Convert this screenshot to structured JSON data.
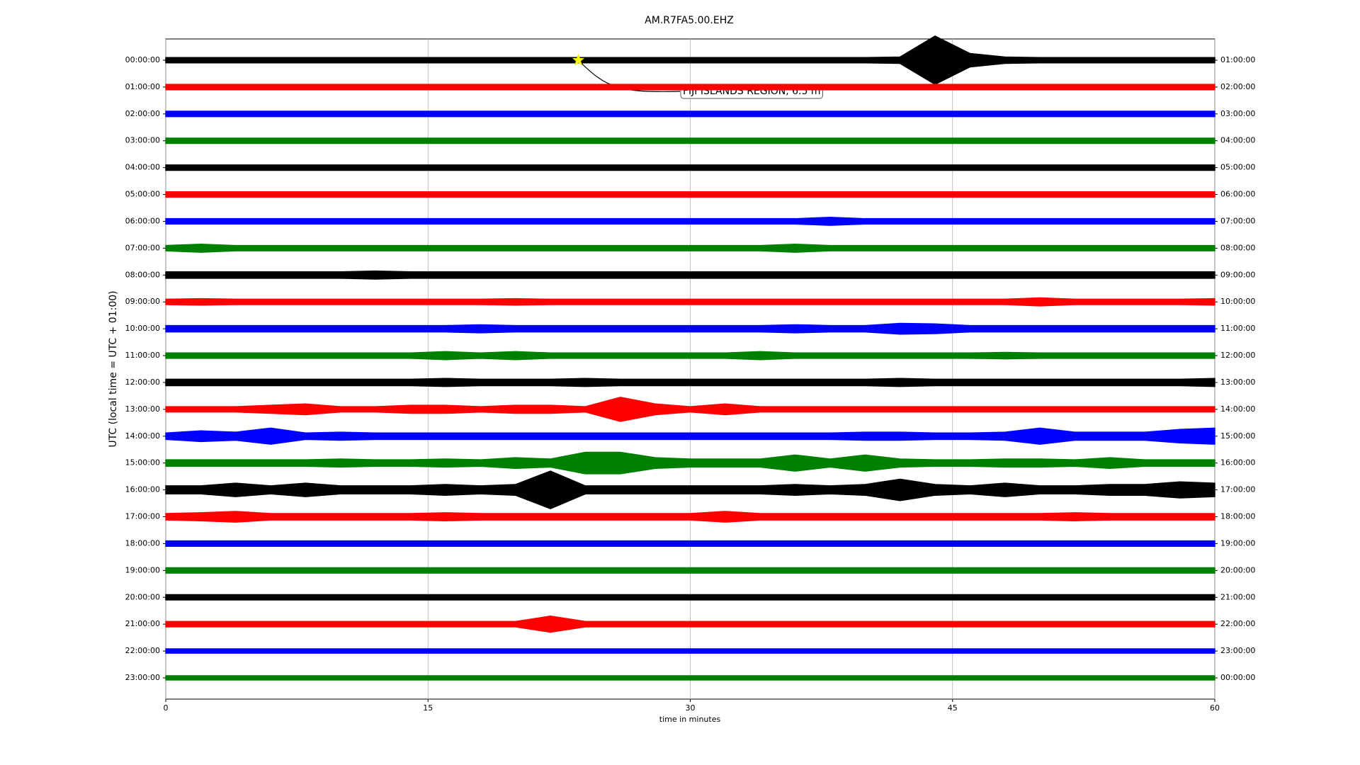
{
  "chart_data": {
    "type": "helicorder",
    "title": "AM.R7FA5.00.EHZ",
    "xlabel": "time in minutes",
    "ylabel": "UTC (local time = UTC + 01:00)",
    "xlim": [
      0,
      60
    ],
    "xticks": [
      0,
      15,
      30,
      45,
      60
    ],
    "grid": true,
    "x": [
      0,
      2,
      4,
      6,
      8,
      10,
      12,
      14,
      16,
      18,
      20,
      22,
      24,
      26,
      28,
      30,
      32,
      34,
      36,
      38,
      40,
      42,
      44,
      46,
      48,
      50,
      52,
      54,
      56,
      58,
      60
    ],
    "series": [
      {
        "name": "00:00:00",
        "right_label": "01:00:00",
        "color": "#000000",
        "annotation": {
          "text": "FIJI ISLANDS REGION, 6.5 m",
          "x": 23.6
        },
        "values": [
          0.1,
          0.1,
          0.1,
          0.1,
          0.1,
          0.1,
          0.1,
          0.1,
          0.1,
          0.1,
          0.1,
          0.1,
          0.1,
          0.1,
          0.1,
          0.1,
          0.1,
          0.1,
          0.1,
          0.1,
          0.1,
          0.12,
          0.9,
          0.25,
          0.12,
          0.1,
          0.1,
          0.1,
          0.1,
          0.1,
          0.1
        ]
      },
      {
        "name": "01:00:00",
        "right_label": "02:00:00",
        "color": "#ff0000",
        "values": [
          0.1,
          0.1,
          0.1,
          0.1,
          0.1,
          0.1,
          0.1,
          0.1,
          0.1,
          0.1,
          0.1,
          0.1,
          0.1,
          0.1,
          0.1,
          0.1,
          0.1,
          0.1,
          0.1,
          0.1,
          0.1,
          0.1,
          0.1,
          0.1,
          0.1,
          0.1,
          0.1,
          0.1,
          0.1,
          0.1,
          0.1
        ]
      },
      {
        "name": "02:00:00",
        "right_label": "03:00:00",
        "color": "#0000ff",
        "values": [
          0.1,
          0.1,
          0.1,
          0.1,
          0.1,
          0.1,
          0.1,
          0.1,
          0.1,
          0.1,
          0.1,
          0.1,
          0.1,
          0.1,
          0.1,
          0.1,
          0.1,
          0.1,
          0.1,
          0.1,
          0.1,
          0.1,
          0.1,
          0.1,
          0.1,
          0.1,
          0.1,
          0.1,
          0.1,
          0.1,
          0.1
        ]
      },
      {
        "name": "03:00:00",
        "right_label": "04:00:00",
        "color": "#008000",
        "values": [
          0.1,
          0.1,
          0.1,
          0.1,
          0.1,
          0.1,
          0.1,
          0.1,
          0.1,
          0.1,
          0.1,
          0.1,
          0.1,
          0.1,
          0.1,
          0.1,
          0.1,
          0.1,
          0.1,
          0.1,
          0.1,
          0.1,
          0.1,
          0.1,
          0.1,
          0.1,
          0.1,
          0.1,
          0.1,
          0.1,
          0.1
        ]
      },
      {
        "name": "04:00:00",
        "right_label": "05:00:00",
        "color": "#000000",
        "values": [
          0.1,
          0.1,
          0.1,
          0.1,
          0.1,
          0.1,
          0.1,
          0.1,
          0.1,
          0.1,
          0.1,
          0.1,
          0.1,
          0.1,
          0.1,
          0.1,
          0.1,
          0.1,
          0.1,
          0.1,
          0.1,
          0.1,
          0.1,
          0.1,
          0.1,
          0.1,
          0.1,
          0.1,
          0.1,
          0.1,
          0.1
        ]
      },
      {
        "name": "05:00:00",
        "right_label": "06:00:00",
        "color": "#ff0000",
        "values": [
          0.1,
          0.1,
          0.1,
          0.1,
          0.1,
          0.1,
          0.1,
          0.1,
          0.1,
          0.1,
          0.1,
          0.1,
          0.1,
          0.1,
          0.1,
          0.1,
          0.1,
          0.1,
          0.1,
          0.1,
          0.1,
          0.1,
          0.1,
          0.1,
          0.1,
          0.1,
          0.1,
          0.1,
          0.1,
          0.1,
          0.1
        ]
      },
      {
        "name": "06:00:00",
        "right_label": "07:00:00",
        "color": "#0000ff",
        "values": [
          0.1,
          0.1,
          0.1,
          0.1,
          0.1,
          0.1,
          0.1,
          0.1,
          0.1,
          0.1,
          0.1,
          0.1,
          0.1,
          0.1,
          0.1,
          0.1,
          0.1,
          0.1,
          0.1,
          0.15,
          0.1,
          0.1,
          0.1,
          0.1,
          0.1,
          0.1,
          0.1,
          0.1,
          0.1,
          0.1,
          0.1
        ]
      },
      {
        "name": "07:00:00",
        "right_label": "08:00:00",
        "color": "#008000",
        "values": [
          0.1,
          0.15,
          0.1,
          0.1,
          0.1,
          0.1,
          0.1,
          0.1,
          0.1,
          0.1,
          0.1,
          0.1,
          0.1,
          0.1,
          0.1,
          0.1,
          0.1,
          0.1,
          0.15,
          0.1,
          0.1,
          0.1,
          0.1,
          0.1,
          0.1,
          0.1,
          0.1,
          0.1,
          0.1,
          0.1,
          0.1
        ]
      },
      {
        "name": "08:00:00",
        "right_label": "09:00:00",
        "color": "#000000",
        "values": [
          0.12,
          0.12,
          0.12,
          0.12,
          0.12,
          0.12,
          0.15,
          0.12,
          0.12,
          0.12,
          0.12,
          0.12,
          0.12,
          0.12,
          0.12,
          0.12,
          0.12,
          0.12,
          0.12,
          0.12,
          0.12,
          0.12,
          0.12,
          0.12,
          0.12,
          0.12,
          0.12,
          0.12,
          0.12,
          0.12,
          0.12
        ]
      },
      {
        "name": "09:00:00",
        "right_label": "10:00:00",
        "color": "#ff0000",
        "values": [
          0.1,
          0.12,
          0.1,
          0.1,
          0.1,
          0.1,
          0.1,
          0.1,
          0.1,
          0.1,
          0.12,
          0.1,
          0.1,
          0.1,
          0.1,
          0.1,
          0.1,
          0.1,
          0.1,
          0.1,
          0.1,
          0.1,
          0.1,
          0.1,
          0.1,
          0.15,
          0.1,
          0.1,
          0.1,
          0.1,
          0.12
        ]
      },
      {
        "name": "10:00:00",
        "right_label": "11:00:00",
        "color": "#0000ff",
        "values": [
          0.12,
          0.12,
          0.12,
          0.12,
          0.12,
          0.12,
          0.12,
          0.12,
          0.12,
          0.15,
          0.12,
          0.12,
          0.12,
          0.12,
          0.12,
          0.12,
          0.12,
          0.12,
          0.15,
          0.12,
          0.12,
          0.2,
          0.18,
          0.12,
          0.12,
          0.12,
          0.12,
          0.12,
          0.12,
          0.12,
          0.12
        ]
      },
      {
        "name": "11:00:00",
        "right_label": "12:00:00",
        "color": "#008000",
        "values": [
          0.1,
          0.1,
          0.1,
          0.1,
          0.1,
          0.1,
          0.1,
          0.1,
          0.15,
          0.1,
          0.15,
          0.1,
          0.1,
          0.1,
          0.1,
          0.1,
          0.1,
          0.15,
          0.1,
          0.1,
          0.1,
          0.1,
          0.1,
          0.1,
          0.12,
          0.1,
          0.1,
          0.1,
          0.1,
          0.1,
          0.1
        ]
      },
      {
        "name": "12:00:00",
        "right_label": "13:00:00",
        "color": "#000000",
        "values": [
          0.12,
          0.12,
          0.12,
          0.12,
          0.12,
          0.12,
          0.12,
          0.12,
          0.15,
          0.12,
          0.12,
          0.12,
          0.15,
          0.12,
          0.12,
          0.12,
          0.12,
          0.12,
          0.12,
          0.12,
          0.12,
          0.15,
          0.12,
          0.12,
          0.12,
          0.12,
          0.12,
          0.12,
          0.12,
          0.12,
          0.15
        ]
      },
      {
        "name": "13:00:00",
        "right_label": "14:00:00",
        "color": "#ff0000",
        "values": [
          0.1,
          0.1,
          0.1,
          0.15,
          0.2,
          0.1,
          0.1,
          0.15,
          0.15,
          0.1,
          0.15,
          0.15,
          0.1,
          0.45,
          0.2,
          0.1,
          0.2,
          0.1,
          0.1,
          0.1,
          0.1,
          0.1,
          0.1,
          0.1,
          0.1,
          0.1,
          0.1,
          0.1,
          0.1,
          0.1,
          0.1
        ]
      },
      {
        "name": "14:00:00",
        "right_label": "15:00:00",
        "color": "#0000ff",
        "values": [
          0.12,
          0.2,
          0.15,
          0.3,
          0.12,
          0.15,
          0.12,
          0.12,
          0.12,
          0.12,
          0.12,
          0.12,
          0.12,
          0.12,
          0.12,
          0.12,
          0.12,
          0.12,
          0.12,
          0.12,
          0.15,
          0.15,
          0.12,
          0.12,
          0.15,
          0.3,
          0.15,
          0.15,
          0.15,
          0.25,
          0.3
        ]
      },
      {
        "name": "15:00:00",
        "right_label": "16:00:00",
        "color": "#008000",
        "values": [
          0.12,
          0.12,
          0.12,
          0.12,
          0.12,
          0.15,
          0.12,
          0.12,
          0.15,
          0.12,
          0.2,
          0.15,
          0.4,
          0.4,
          0.2,
          0.15,
          0.15,
          0.15,
          0.3,
          0.15,
          0.3,
          0.15,
          0.12,
          0.12,
          0.15,
          0.15,
          0.12,
          0.2,
          0.12,
          0.12,
          0.12
        ]
      },
      {
        "name": "16:00:00",
        "right_label": "17:00:00",
        "color": "#000000",
        "values": [
          0.15,
          0.15,
          0.25,
          0.15,
          0.25,
          0.15,
          0.15,
          0.15,
          0.2,
          0.15,
          0.2,
          0.7,
          0.15,
          0.15,
          0.15,
          0.15,
          0.15,
          0.15,
          0.2,
          0.15,
          0.2,
          0.4,
          0.2,
          0.15,
          0.25,
          0.15,
          0.15,
          0.2,
          0.2,
          0.3,
          0.25
        ]
      },
      {
        "name": "17:00:00",
        "right_label": "18:00:00",
        "color": "#ff0000",
        "values": [
          0.12,
          0.15,
          0.2,
          0.12,
          0.12,
          0.12,
          0.12,
          0.12,
          0.15,
          0.12,
          0.12,
          0.12,
          0.12,
          0.12,
          0.12,
          0.12,
          0.2,
          0.12,
          0.12,
          0.12,
          0.12,
          0.12,
          0.12,
          0.12,
          0.12,
          0.12,
          0.15,
          0.12,
          0.12,
          0.12,
          0.12
        ]
      },
      {
        "name": "18:00:00",
        "right_label": "19:00:00",
        "color": "#0000ff",
        "values": [
          0.1,
          0.1,
          0.1,
          0.1,
          0.1,
          0.1,
          0.1,
          0.1,
          0.1,
          0.1,
          0.1,
          0.1,
          0.1,
          0.1,
          0.1,
          0.1,
          0.1,
          0.1,
          0.1,
          0.1,
          0.1,
          0.1,
          0.1,
          0.1,
          0.1,
          0.1,
          0.1,
          0.1,
          0.1,
          0.1,
          0.1
        ]
      },
      {
        "name": "19:00:00",
        "right_label": "20:00:00",
        "color": "#008000",
        "values": [
          0.1,
          0.1,
          0.1,
          0.1,
          0.1,
          0.1,
          0.1,
          0.1,
          0.1,
          0.1,
          0.1,
          0.1,
          0.1,
          0.1,
          0.1,
          0.1,
          0.1,
          0.1,
          0.1,
          0.1,
          0.1,
          0.1,
          0.1,
          0.1,
          0.1,
          0.1,
          0.1,
          0.1,
          0.1,
          0.1,
          0.1
        ]
      },
      {
        "name": "20:00:00",
        "right_label": "21:00:00",
        "color": "#000000",
        "values": [
          0.1,
          0.1,
          0.1,
          0.1,
          0.1,
          0.1,
          0.1,
          0.1,
          0.1,
          0.1,
          0.1,
          0.1,
          0.1,
          0.1,
          0.1,
          0.1,
          0.1,
          0.1,
          0.1,
          0.1,
          0.1,
          0.1,
          0.1,
          0.1,
          0.1,
          0.1,
          0.1,
          0.1,
          0.1,
          0.1,
          0.1
        ]
      },
      {
        "name": "21:00:00",
        "right_label": "22:00:00",
        "color": "#ff0000",
        "values": [
          0.1,
          0.1,
          0.1,
          0.1,
          0.1,
          0.1,
          0.1,
          0.1,
          0.1,
          0.1,
          0.1,
          0.3,
          0.1,
          0.1,
          0.1,
          0.1,
          0.1,
          0.1,
          0.1,
          0.1,
          0.1,
          0.1,
          0.1,
          0.1,
          0.1,
          0.1,
          0.1,
          0.1,
          0.1,
          0.1,
          0.1
        ]
      },
      {
        "name": "22:00:00",
        "right_label": "23:00:00",
        "color": "#0000ff",
        "values": [
          0.08,
          0.08,
          0.08,
          0.08,
          0.08,
          0.08,
          0.08,
          0.08,
          0.08,
          0.08,
          0.08,
          0.08,
          0.08,
          0.08,
          0.08,
          0.08,
          0.08,
          0.08,
          0.08,
          0.08,
          0.08,
          0.08,
          0.08,
          0.08,
          0.08,
          0.08,
          0.08,
          0.08,
          0.08,
          0.08,
          0.08
        ]
      },
      {
        "name": "23:00:00",
        "right_label": "00:00:00",
        "color": "#008000",
        "values": [
          0.08,
          0.08,
          0.08,
          0.08,
          0.08,
          0.08,
          0.08,
          0.08,
          0.08,
          0.08,
          0.08,
          0.08,
          0.08,
          0.08,
          0.08,
          0.08,
          0.08,
          0.08,
          0.08,
          0.08,
          0.08,
          0.08,
          0.08,
          0.08,
          0.08,
          0.08,
          0.08,
          0.08,
          0.08,
          0.08,
          0.08
        ]
      }
    ]
  }
}
